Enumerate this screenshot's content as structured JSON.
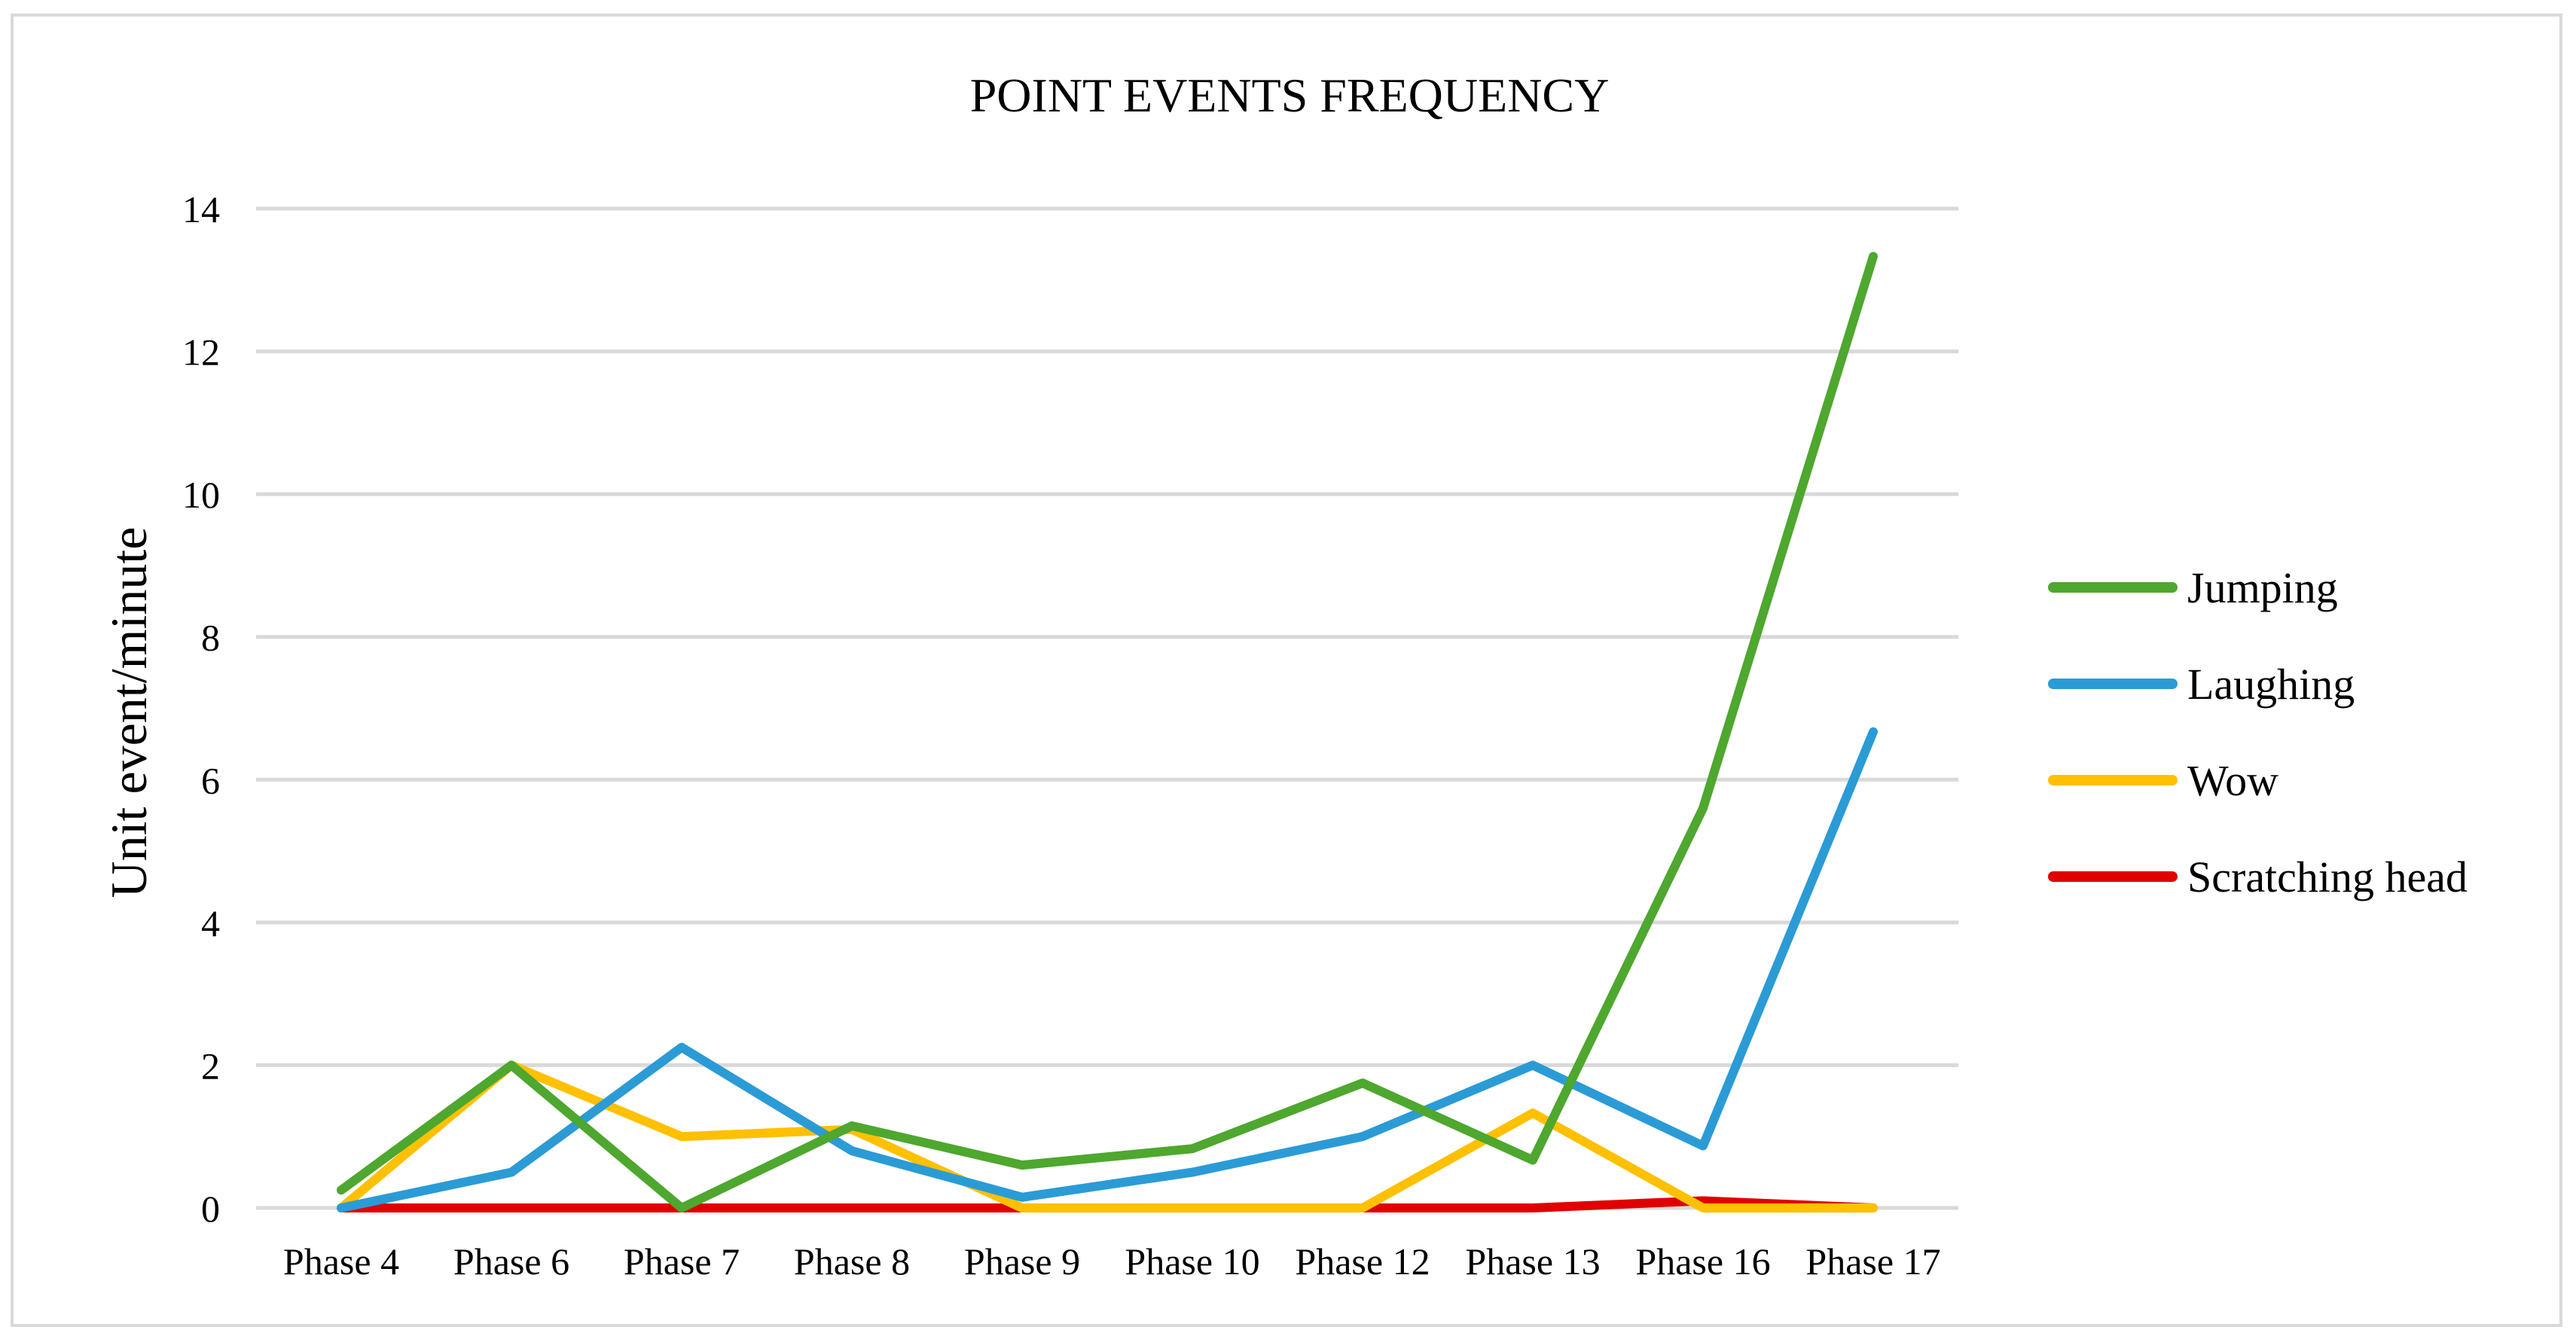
{
  "chart_data": {
    "type": "line",
    "title": "POINT EVENTS FREQUENCY",
    "xlabel": "",
    "ylabel": "Unit event/minute",
    "ylim": [
      0,
      14
    ],
    "yticks": [
      0,
      2,
      4,
      6,
      8,
      10,
      12,
      14
    ],
    "grid": true,
    "legend_position": "right",
    "categories": [
      "Phase 4",
      "Phase 6",
      "Phase 7",
      "Phase 8",
      "Phase 9",
      "Phase 10",
      "Phase 12",
      "Phase 13",
      "Phase 16",
      "Phase 17"
    ],
    "series": [
      {
        "name": "Jumping",
        "color": "#4ea72e",
        "values": [
          0.25,
          2.0,
          0.0,
          1.15,
          0.6,
          0.83,
          1.75,
          0.67,
          5.6,
          13.33
        ]
      },
      {
        "name": "Laughing",
        "color": "#2b9bd6",
        "values": [
          0.0,
          0.5,
          2.25,
          0.8,
          0.15,
          0.5,
          1.0,
          2.0,
          0.87,
          6.67
        ]
      },
      {
        "name": "Wow",
        "color": "#ffc000",
        "values": [
          0.0,
          2.0,
          1.0,
          1.1,
          0.0,
          0.0,
          0.0,
          1.33,
          0.0,
          0.0
        ]
      },
      {
        "name": "Scratching head",
        "color": "#e00000",
        "values": [
          0.0,
          0.0,
          0.0,
          0.0,
          0.0,
          0.0,
          0.0,
          0.0,
          0.1,
          0.0
        ]
      }
    ]
  }
}
